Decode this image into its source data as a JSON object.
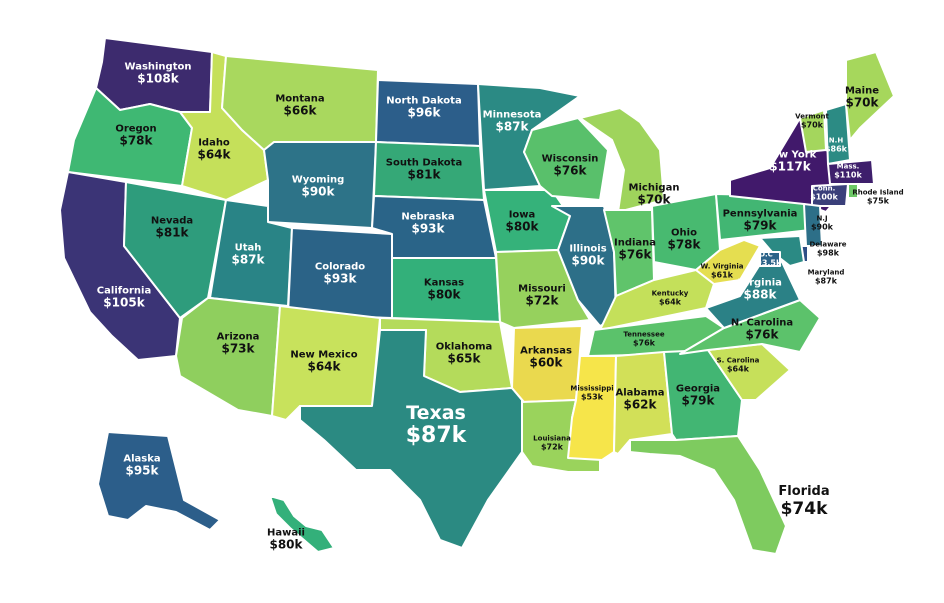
{
  "map": {
    "states": [
      {
        "name": "Washington",
        "value": "$108k",
        "color": "#3d2b6e"
      },
      {
        "name": "Oregon",
        "value": "$78k",
        "color": "#3fb873"
      },
      {
        "name": "California",
        "value": "$105k",
        "color": "#3b3476"
      },
      {
        "name": "Nevada",
        "value": "$81k",
        "color": "#2e9c7c"
      },
      {
        "name": "Idaho",
        "value": "$64k",
        "color": "#c5e05a"
      },
      {
        "name": "Montana",
        "value": "$66k",
        "color": "#a9d85e"
      },
      {
        "name": "Wyoming",
        "value": "$90k",
        "color": "#2d7388"
      },
      {
        "name": "Utah",
        "value": "$87k",
        "color": "#298486"
      },
      {
        "name": "Arizona",
        "value": "$73k",
        "color": "#8fcf5e"
      },
      {
        "name": "Colorado",
        "value": "$93k",
        "color": "#2b6387"
      },
      {
        "name": "New Mexico",
        "value": "$64k",
        "color": "#c8e25c"
      },
      {
        "name": "North Dakota",
        "value": "$96k",
        "color": "#2c5e8a"
      },
      {
        "name": "South Dakota",
        "value": "$81k",
        "color": "#35a877"
      },
      {
        "name": "Nebraska",
        "value": "$93k",
        "color": "#2a6488"
      },
      {
        "name": "Kansas",
        "value": "$80k",
        "color": "#33b07a"
      },
      {
        "name": "Oklahoma",
        "value": "$65k",
        "color": "#b4db5b"
      },
      {
        "name": "Texas",
        "value": "$87k",
        "color": "#2b8a82"
      },
      {
        "name": "Minnesota",
        "value": "$87k",
        "color": "#2b8a84"
      },
      {
        "name": "Iowa",
        "value": "$80k",
        "color": "#35b27a"
      },
      {
        "name": "Missouri",
        "value": "$72k",
        "color": "#96d15d"
      },
      {
        "name": "Arkansas",
        "value": "$60k",
        "color": "#ead94e"
      },
      {
        "name": "Louisiana",
        "value": "$72k",
        "color": "#9ad35c"
      },
      {
        "name": "Wisconsin",
        "value": "$76k",
        "color": "#59c06b"
      },
      {
        "name": "Illinois",
        "value": "$90k",
        "color": "#2d6f88"
      },
      {
        "name": "Michigan",
        "value": "$70k",
        "color": "#9fd45c"
      },
      {
        "name": "Indiana",
        "value": "$76k",
        "color": "#60c46b"
      },
      {
        "name": "Ohio",
        "value": "$78k",
        "color": "#48ba70"
      },
      {
        "name": "Kentucky",
        "value": "$64k",
        "color": "#c4e05a"
      },
      {
        "name": "Tennessee",
        "value": "$76k",
        "color": "#5bc26b"
      },
      {
        "name": "Mississippi",
        "value": "$53k",
        "color": "#f6e54a"
      },
      {
        "name": "Alabama",
        "value": "$62k",
        "color": "#d2e058"
      },
      {
        "name": "Georgia",
        "value": "$79k",
        "color": "#42b673"
      },
      {
        "name": "Florida",
        "value": "$74k",
        "color": "#7ecb5f"
      },
      {
        "name": "S. Carolina",
        "value": "$64k",
        "color": "#c6e05a"
      },
      {
        "name": "N. Carolina",
        "value": "$76k",
        "color": "#5cc26b"
      },
      {
        "name": "Virginia",
        "value": "$88k",
        "color": "#2b8186"
      },
      {
        "name": "W. Virginia",
        "value": "$61k",
        "color": "#e5de50"
      },
      {
        "name": "Pennsylvania",
        "value": "$79k",
        "color": "#42b673"
      },
      {
        "name": "New York",
        "value": "$117k",
        "color": "#41196b"
      },
      {
        "name": "Vermont",
        "value": "$70k",
        "color": "#a4d65d"
      },
      {
        "name": "N.H",
        "value": "$86k",
        "color": "#2c8b84"
      },
      {
        "name": "Maine",
        "value": "$70k",
        "color": "#a6d75c"
      },
      {
        "name": "Mass.",
        "value": "$110k",
        "color": "#3e1f6c"
      },
      {
        "name": "Conn.",
        "value": "$100k",
        "color": "#3a3f7a"
      },
      {
        "name": "Rhode Island",
        "value": "$75k",
        "color": "#6dc766"
      },
      {
        "name": "N.J",
        "value": "$90k",
        "color": "#2d6f88"
      },
      {
        "name": "Delaware",
        "value": "$98k",
        "color": "#2f4f86"
      },
      {
        "name": "Maryland",
        "value": "$87k",
        "color": "#2b8a84"
      },
      {
        "name": "D.C",
        "value": "$93.5k",
        "color": "#2b6388"
      },
      {
        "name": "Alaska",
        "value": "$95k",
        "color": "#2c5e8a"
      },
      {
        "name": "Hawaii",
        "value": "$80k",
        "color": "#33b07a"
      }
    ]
  }
}
